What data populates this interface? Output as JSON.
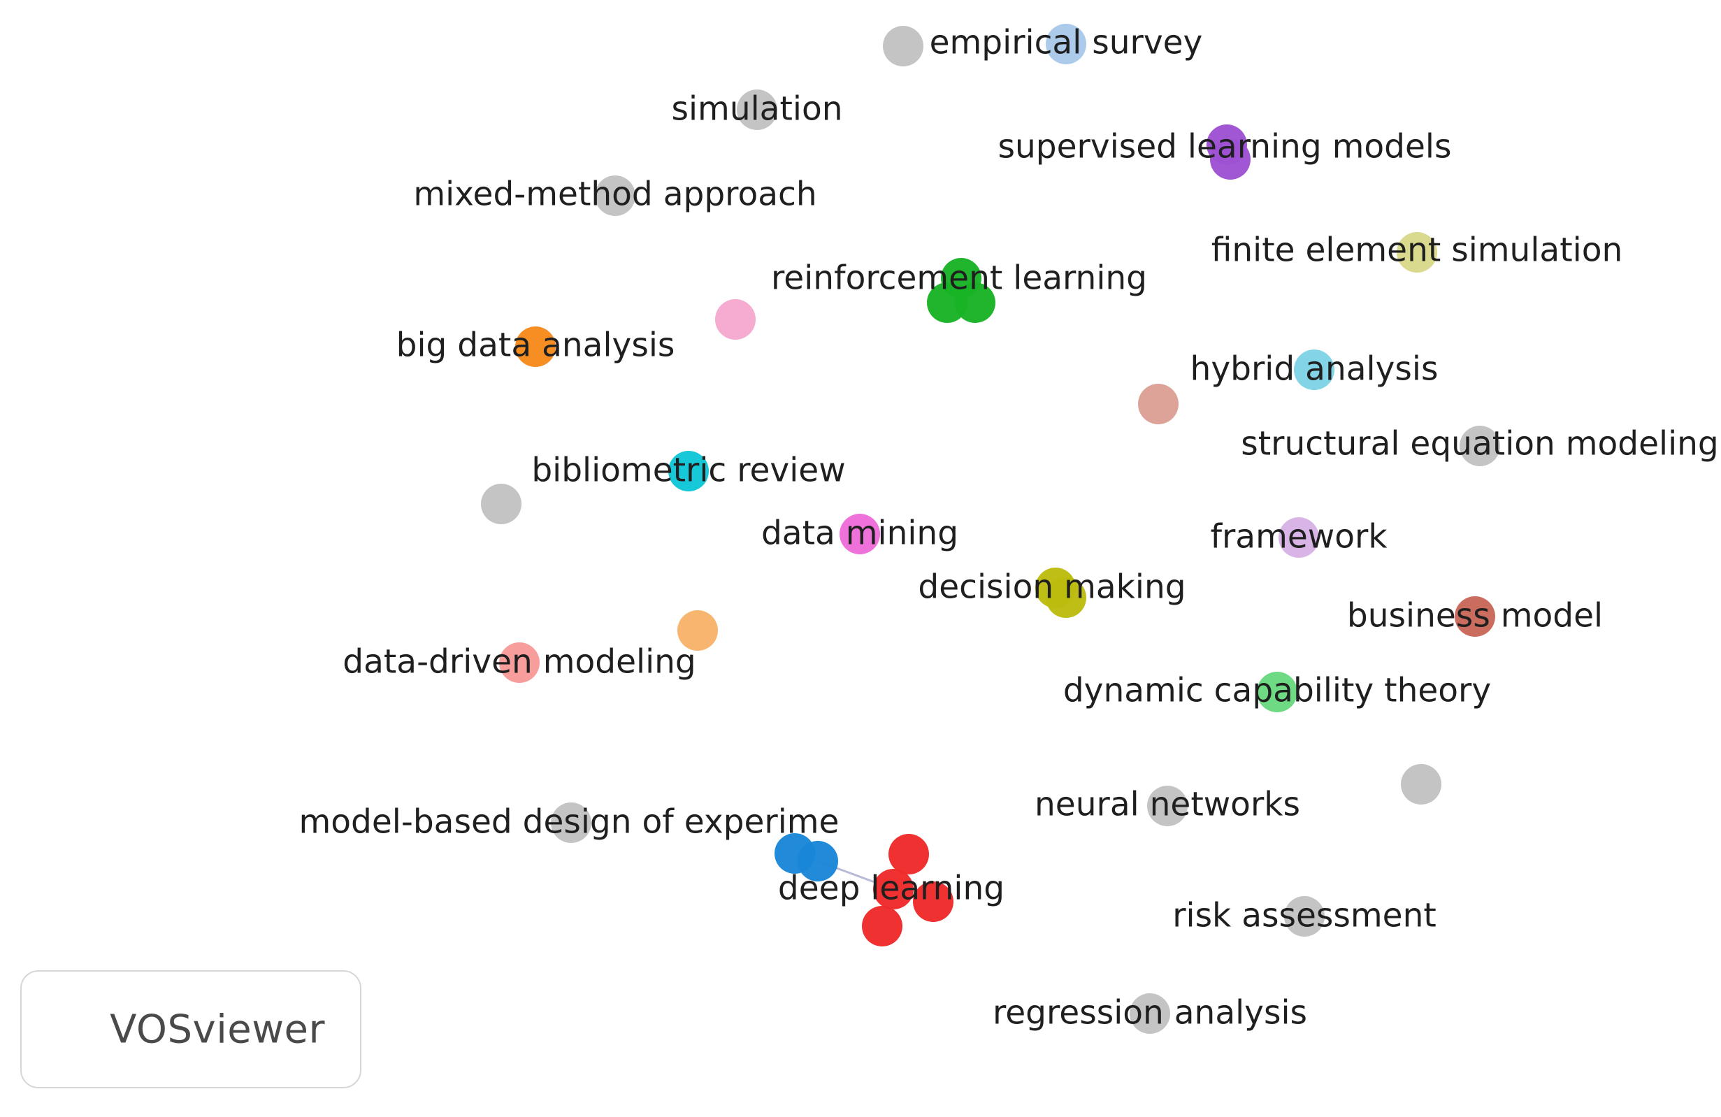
{
  "network": {
    "nodes": [
      {
        "id": "empirical-survey",
        "label": "empirical survey",
        "color": "#a9c9ea"
      },
      {
        "id": "unlabeled-top",
        "label": "",
        "color": "#c2c2c2"
      },
      {
        "id": "simulation",
        "label": "simulation",
        "color": "#c2c2c2"
      },
      {
        "id": "supervised-learning-models",
        "label": "supervised learning models",
        "color": "#9e52d3"
      },
      {
        "id": "mixed-method-approach",
        "label": "mixed-method approach",
        "color": "#c2c2c2"
      },
      {
        "id": "finite-element-simulation",
        "label": "finite element simulation",
        "color": "#d9d98a"
      },
      {
        "id": "reinforcement-learning",
        "label": "reinforcement learning",
        "color": "#19b326"
      },
      {
        "id": "unlabeled-pink",
        "label": "",
        "color": "#f6a8cf"
      },
      {
        "id": "big-data-analysis",
        "label": "big data analysis",
        "color": "#f78a1c"
      },
      {
        "id": "hybrid-analysis",
        "label": "hybrid analysis",
        "color": "#7fd3e6"
      },
      {
        "id": "unlabeled-salmon",
        "label": "",
        "color": "#dca095"
      },
      {
        "id": "structural-equation-modeling",
        "label": "structural equation modeling",
        "color": "#c2c2c2"
      },
      {
        "id": "bibliometric-review",
        "label": "bibliometric review",
        "color": "#10c6d8"
      },
      {
        "id": "unlabeled-left",
        "label": "",
        "color": "#c2c2c2"
      },
      {
        "id": "data-mining",
        "label": "data mining",
        "color": "#ee6dd9"
      },
      {
        "id": "framework",
        "label": "framework",
        "color": "#d8b3e6"
      },
      {
        "id": "decision-making",
        "label": "decision making",
        "color": "#bcbc0f"
      },
      {
        "id": "business-model",
        "label": "business model",
        "color": "#c8685a"
      },
      {
        "id": "unlabeled-orange",
        "label": "",
        "color": "#f8b36a"
      },
      {
        "id": "data-driven-modeling",
        "label": "data-driven modeling",
        "color": "#f79a98"
      },
      {
        "id": "dynamic-capability-theory",
        "label": "dynamic capability theory",
        "color": "#69d980"
      },
      {
        "id": "unlabeled-right",
        "label": "",
        "color": "#c2c2c2"
      },
      {
        "id": "neural-networks",
        "label": "neural networks",
        "color": "#c2c2c2"
      },
      {
        "id": "model-based-design",
        "label": "model-based design of experime",
        "color": "#c2c2c2"
      },
      {
        "id": "unlabeled-blue",
        "label": "",
        "color": "#1a86d8"
      },
      {
        "id": "deep-learning",
        "label": "deep learning",
        "color": "#ee2a2a"
      },
      {
        "id": "risk-assessment",
        "label": "risk assessment",
        "color": "#c2c2c2"
      },
      {
        "id": "regression-analysis",
        "label": "regression analysis",
        "color": "#c2c2c2"
      }
    ]
  },
  "branding": {
    "text": "VOSviewer"
  }
}
